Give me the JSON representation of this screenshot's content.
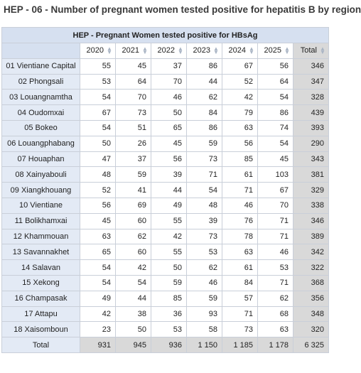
{
  "title": "HEP - 06 - Number of pregnant women tested positive for hepatitis B by region",
  "table": {
    "caption": "HEP - Pregnant Women tested positive for HBsAg",
    "columns": [
      "2020",
      "2021",
      "2022",
      "2023",
      "2024",
      "2025",
      "Total"
    ],
    "rows": [
      {
        "label": "01 Vientiane Capital",
        "values": [
          "55",
          "45",
          "37",
          "86",
          "67",
          "56"
        ],
        "total": "346"
      },
      {
        "label": "02 Phongsali",
        "values": [
          "53",
          "64",
          "70",
          "44",
          "52",
          "64"
        ],
        "total": "347"
      },
      {
        "label": "03 Louangnamtha",
        "values": [
          "54",
          "70",
          "46",
          "62",
          "42",
          "54"
        ],
        "total": "328"
      },
      {
        "label": "04 Oudomxai",
        "values": [
          "67",
          "73",
          "50",
          "84",
          "79",
          "86"
        ],
        "total": "439"
      },
      {
        "label": "05 Bokeo",
        "values": [
          "54",
          "51",
          "65",
          "86",
          "63",
          "74"
        ],
        "total": "393"
      },
      {
        "label": "06 Louangphabang",
        "values": [
          "50",
          "26",
          "45",
          "59",
          "56",
          "54"
        ],
        "total": "290"
      },
      {
        "label": "07 Houaphan",
        "values": [
          "47",
          "37",
          "56",
          "73",
          "85",
          "45"
        ],
        "total": "343"
      },
      {
        "label": "08 Xainyabouli",
        "values": [
          "48",
          "59",
          "39",
          "71",
          "61",
          "103"
        ],
        "total": "381"
      },
      {
        "label": "09 Xiangkhouang",
        "values": [
          "52",
          "41",
          "44",
          "54",
          "71",
          "67"
        ],
        "total": "329"
      },
      {
        "label": "10 Vientiane",
        "values": [
          "56",
          "69",
          "49",
          "48",
          "46",
          "70"
        ],
        "total": "338"
      },
      {
        "label": "11 Bolikhamxai",
        "values": [
          "45",
          "60",
          "55",
          "39",
          "76",
          "71"
        ],
        "total": "346"
      },
      {
        "label": "12 Khammouan",
        "values": [
          "63",
          "62",
          "42",
          "73",
          "78",
          "71"
        ],
        "total": "389"
      },
      {
        "label": "13 Savannakhet",
        "values": [
          "65",
          "60",
          "55",
          "53",
          "63",
          "46"
        ],
        "total": "342"
      },
      {
        "label": "14 Salavan",
        "values": [
          "54",
          "42",
          "50",
          "62",
          "61",
          "53"
        ],
        "total": "322"
      },
      {
        "label": "15 Xekong",
        "values": [
          "54",
          "54",
          "59",
          "46",
          "84",
          "71"
        ],
        "total": "368"
      },
      {
        "label": "16 Champasak",
        "values": [
          "49",
          "44",
          "85",
          "59",
          "57",
          "62"
        ],
        "total": "356"
      },
      {
        "label": "17 Attapu",
        "values": [
          "42",
          "38",
          "36",
          "93",
          "71",
          "68"
        ],
        "total": "348"
      },
      {
        "label": "18 Xaisomboun",
        "values": [
          "23",
          "50",
          "53",
          "58",
          "73",
          "63"
        ],
        "total": "320"
      }
    ],
    "footer": {
      "label": "Total",
      "values": [
        "931",
        "945",
        "936",
        "1 150",
        "1 185",
        "1 178"
      ],
      "total": "6 325"
    }
  },
  "icons": {
    "sort": "sort-updown-icon"
  },
  "colors": {
    "header_bg": "#d6e0f0",
    "rowlabel_bg": "#e3eaf5",
    "total_bg": "#d9d9d9"
  }
}
